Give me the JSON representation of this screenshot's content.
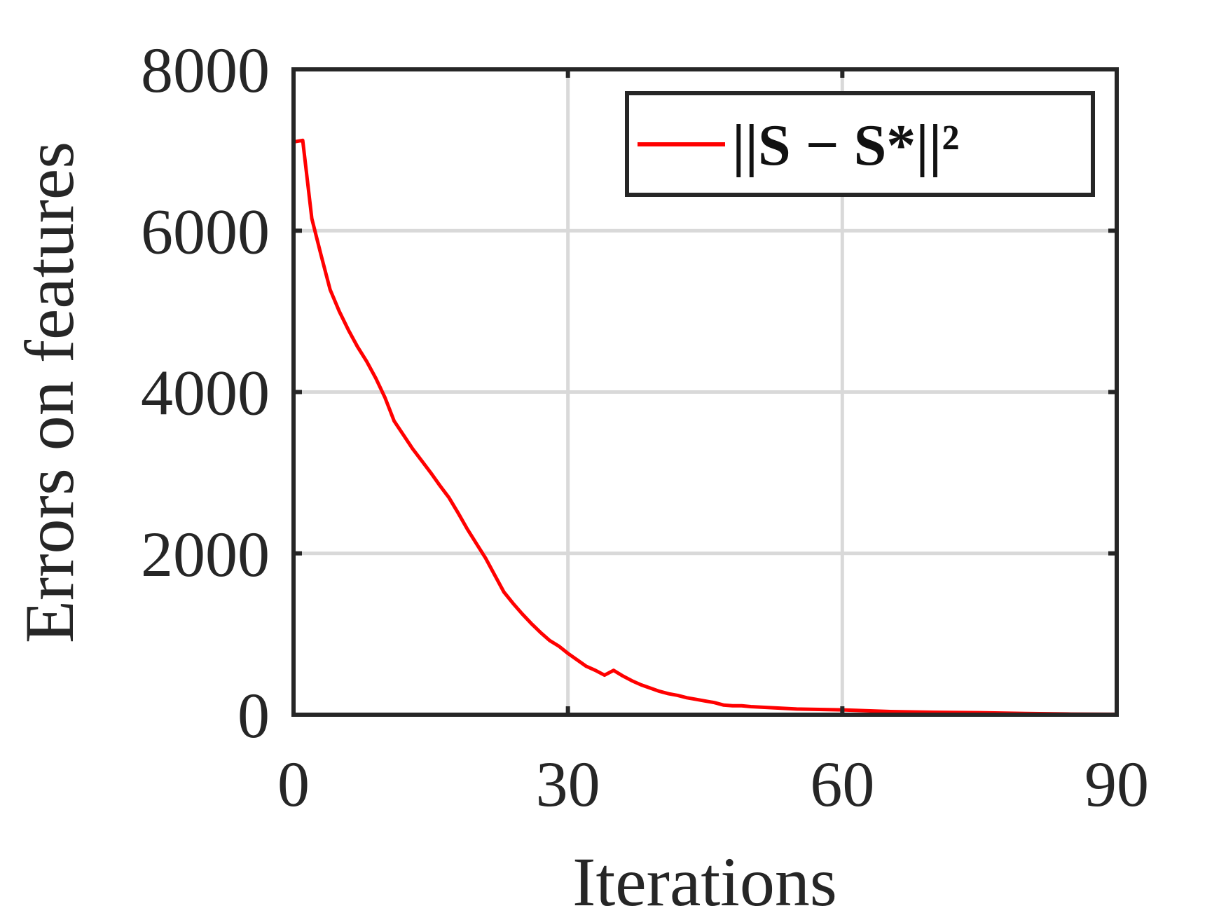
{
  "chart_data": {
    "type": "line",
    "title": "",
    "xlabel": "Iterations",
    "ylabel": "Errors on features",
    "xlim": [
      0,
      90
    ],
    "ylim": [
      0,
      8000
    ],
    "xticks": [
      0,
      30,
      60,
      90
    ],
    "yticks": [
      0,
      2000,
      4000,
      6000,
      8000
    ],
    "xtick_labels": [
      "0",
      "30",
      "60",
      "90"
    ],
    "ytick_labels": [
      "0",
      "2000",
      "4000",
      "6000",
      "8000"
    ],
    "grid": true,
    "legend_position": "top-right",
    "legend_label": "||S − S*||²",
    "series": [
      {
        "name": "||S − S*||²",
        "color": "#ff0000",
        "x": [
          0,
          1,
          2,
          3,
          4,
          5,
          6,
          7,
          8,
          9,
          10,
          11,
          12,
          13,
          14,
          15,
          16,
          17,
          18,
          19,
          20,
          21,
          22,
          23,
          24,
          25,
          26,
          27,
          28,
          29,
          30,
          31,
          32,
          33,
          34,
          35,
          36,
          37,
          38,
          39,
          40,
          41,
          42,
          43,
          44,
          45,
          46,
          47,
          48,
          49,
          50,
          55,
          60,
          65,
          70,
          75,
          80,
          85,
          90
        ],
        "y": [
          7100,
          7120,
          6150,
          5700,
          5270,
          5000,
          4770,
          4560,
          4380,
          4170,
          3930,
          3640,
          3470,
          3300,
          3150,
          3000,
          2840,
          2690,
          2500,
          2300,
          2120,
          1940,
          1730,
          1520,
          1380,
          1250,
          1130,
          1020,
          920,
          850,
          760,
          680,
          600,
          550,
          490,
          550,
          480,
          420,
          370,
          330,
          290,
          260,
          240,
          210,
          190,
          170,
          150,
          120,
          110,
          110,
          100,
          70,
          60,
          40,
          30,
          25,
          15,
          8,
          5
        ]
      }
    ]
  }
}
